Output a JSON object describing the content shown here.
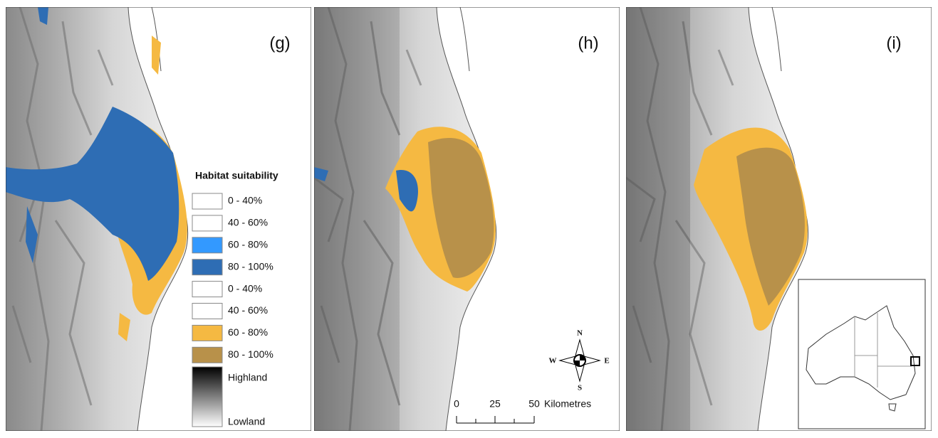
{
  "panels": [
    {
      "label": "(g)"
    },
    {
      "label": "(h)"
    },
    {
      "label": "(i)"
    }
  ],
  "legend": {
    "title": "Habitat suitability",
    "items": [
      {
        "label": "0 - 40%",
        "color": "#ffffff"
      },
      {
        "label": "40 - 60%",
        "color": "#ffffff"
      },
      {
        "label": "60 - 80%",
        "color": "#3399ff"
      },
      {
        "label": "80 - 100%",
        "color": "#2e6db4"
      },
      {
        "label": "0 - 40%",
        "color": "#ffffff"
      },
      {
        "label": "40 - 60%",
        "color": "#ffffff"
      },
      {
        "label": "60 - 80%",
        "color": "#f5b942"
      },
      {
        "label": "80 - 100%",
        "color": "#b8914a"
      }
    ],
    "gradient": {
      "high": "Highland",
      "low": "Lowland"
    }
  },
  "scale_bar": {
    "ticks": [
      "0",
      "25",
      "50"
    ],
    "unit": "Kilometres"
  },
  "compass": {
    "n": "N",
    "s": "S",
    "e": "E",
    "w": "W"
  }
}
